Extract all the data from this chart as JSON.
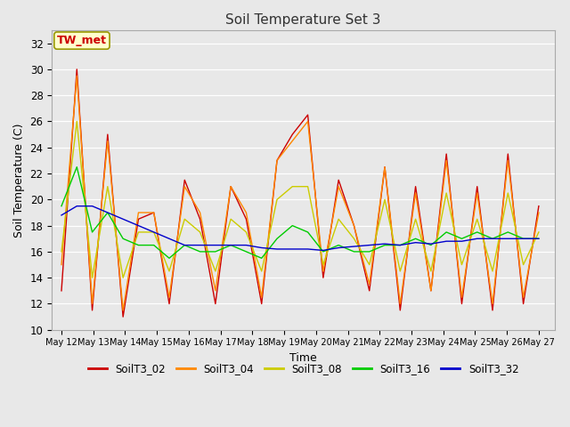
{
  "title": "Soil Temperature Set 3",
  "xlabel": "Time",
  "ylabel": "Soil Temperature (C)",
  "ylim": [
    10,
    33
  ],
  "yticks": [
    10,
    12,
    14,
    16,
    18,
    20,
    22,
    24,
    26,
    28,
    30,
    32
  ],
  "bg_color": "#e8e8e8",
  "grid_color": "#ffffff",
  "line_colors": {
    "SoilT3_02": "#cc0000",
    "SoilT3_04": "#ff8800",
    "SoilT3_08": "#cccc00",
    "SoilT3_16": "#00cc00",
    "SoilT3_32": "#0000cc"
  },
  "annotation_text": "TW_met",
  "annotation_color": "#cc0000",
  "annotation_bg": "#ffffcc",
  "x_tick_labels": [
    "May 12",
    "May 13",
    "May 14",
    "May 15",
    "May 16",
    "May 17",
    "May 18",
    "May 19",
    "May 20",
    "May 21",
    "May 22",
    "May 23",
    "May 24",
    "May 25",
    "May 26",
    "May 27"
  ],
  "SoilT3_02": [
    13,
    30,
    11.5,
    25,
    11,
    18.5,
    19,
    12,
    21.5,
    18.5,
    12,
    21,
    18.5,
    12,
    23,
    25,
    26.5,
    14,
    21.5,
    18,
    13,
    22.5,
    11.5,
    21,
    13,
    23.5,
    12,
    21,
    11.5,
    23.5,
    12,
    19.5
  ],
  "SoilT3_04": [
    15,
    29.5,
    12,
    24.5,
    11.5,
    19,
    19,
    12.5,
    21,
    19,
    13,
    21,
    19,
    12.5,
    23,
    24.5,
    26,
    14.5,
    21,
    18,
    13.5,
    22.5,
    12,
    20.5,
    13,
    23,
    12.5,
    20.5,
    12,
    23,
    12.5,
    19
  ],
  "SoilT3_08": [
    16,
    26,
    14,
    21,
    14,
    17.5,
    17.5,
    14.5,
    18.5,
    17.5,
    14.5,
    18.5,
    17.5,
    14.5,
    20,
    21,
    21,
    15,
    18.5,
    17,
    15,
    20,
    14.5,
    18.5,
    14.5,
    20.5,
    15,
    18.5,
    14.5,
    20.5,
    15,
    17.5
  ],
  "SoilT3_16": [
    19.5,
    22.5,
    17.5,
    19,
    17,
    16.5,
    16.5,
    15.5,
    16.5,
    16,
    16,
    16.5,
    16,
    15.5,
    17,
    18,
    17.5,
    16,
    16.5,
    16,
    16,
    16.5,
    16.5,
    17,
    16.5,
    17.5,
    17,
    17.5,
    17,
    17.5,
    17,
    17
  ],
  "SoilT3_32": [
    18.8,
    19.5,
    19.5,
    19,
    18.5,
    18,
    17.5,
    17,
    16.5,
    16.5,
    16.5,
    16.5,
    16.5,
    16.3,
    16.2,
    16.2,
    16.2,
    16.1,
    16.3,
    16.4,
    16.5,
    16.6,
    16.5,
    16.7,
    16.6,
    16.8,
    16.8,
    17,
    17,
    17,
    17,
    17
  ]
}
